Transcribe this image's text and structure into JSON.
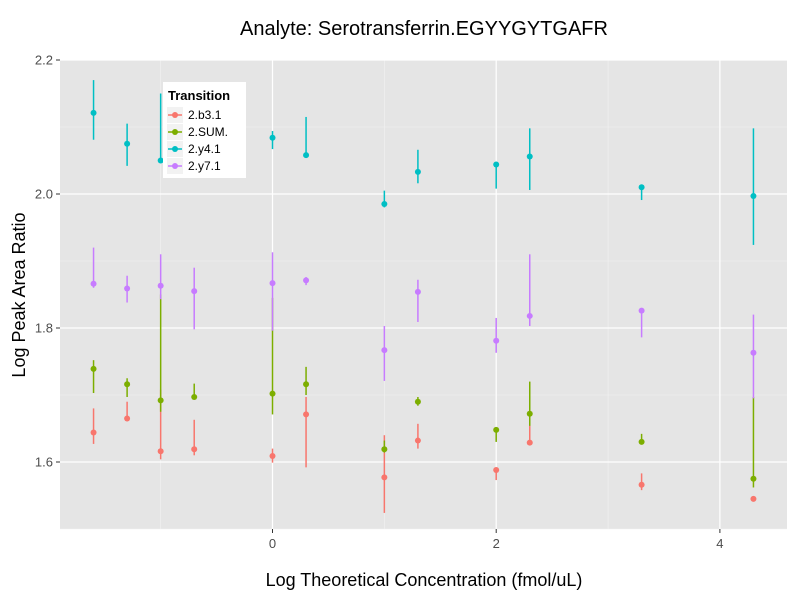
{
  "chart_data": {
    "type": "scatter",
    "title": "Analyte: Serotransferrin.EGYYGYTGAFR",
    "xlabel": "Log Theoretical Concentration (fmol/uL)",
    "ylabel": "Log Peak Area Ratio",
    "xlim": [
      -1.9,
      4.6
    ],
    "ylim": [
      1.5,
      2.2
    ],
    "x_ticks": [
      0,
      2,
      4
    ],
    "x_tick_labels": [
      "0",
      "2",
      "4"
    ],
    "y_ticks": [
      1.6,
      1.8,
      2.0,
      2.2
    ],
    "y_tick_labels": [
      "1.6",
      "1.8",
      "2.0",
      "2.2"
    ],
    "grid": true,
    "legend": {
      "title": "Transition",
      "placement": "top-left"
    },
    "series": [
      {
        "name": "2.b3.1",
        "color": "#F8766D",
        "points": [
          {
            "x": -1.6,
            "y": 1.644,
            "lo": 1.627,
            "hi": 1.68
          },
          {
            "x": -1.3,
            "y": 1.665,
            "lo": 1.661,
            "hi": 1.69
          },
          {
            "x": -1.0,
            "y": 1.616,
            "lo": 1.604,
            "hi": 1.708
          },
          {
            "x": -0.7,
            "y": 1.619,
            "lo": 1.61,
            "hi": 1.663
          },
          {
            "x": 0.0,
            "y": 1.609,
            "lo": 1.599,
            "hi": 1.62
          },
          {
            "x": 0.3,
            "y": 1.671,
            "lo": 1.592,
            "hi": 1.697
          },
          {
            "x": 1.0,
            "y": 1.577,
            "lo": 1.524,
            "hi": 1.64
          },
          {
            "x": 1.3,
            "y": 1.632,
            "lo": 1.62,
            "hi": 1.657
          },
          {
            "x": 2.0,
            "y": 1.588,
            "lo": 1.573,
            "hi": 1.59
          },
          {
            "x": 2.3,
            "y": 1.629,
            "lo": 1.625,
            "hi": 1.655
          },
          {
            "x": 3.3,
            "y": 1.566,
            "lo": 1.558,
            "hi": 1.583
          },
          {
            "x": 4.3,
            "y": 1.545,
            "lo": 1.545,
            "hi": 1.545
          }
        ]
      },
      {
        "name": "2.SUM.",
        "color": "#7CAE00",
        "points": [
          {
            "x": -1.6,
            "y": 1.739,
            "lo": 1.703,
            "hi": 1.752
          },
          {
            "x": -1.3,
            "y": 1.716,
            "lo": 1.697,
            "hi": 1.725
          },
          {
            "x": -1.0,
            "y": 1.692,
            "lo": 1.675,
            "hi": 1.85
          },
          {
            "x": -0.7,
            "y": 1.697,
            "lo": 1.697,
            "hi": 1.717
          },
          {
            "x": 0.0,
            "y": 1.702,
            "lo": 1.671,
            "hi": 1.845
          },
          {
            "x": 0.3,
            "y": 1.716,
            "lo": 1.7,
            "hi": 1.742
          },
          {
            "x": 1.0,
            "y": 1.619,
            "lo": 1.614,
            "hi": 1.632
          },
          {
            "x": 1.3,
            "y": 1.69,
            "lo": 1.684,
            "hi": 1.697
          },
          {
            "x": 2.0,
            "y": 1.648,
            "lo": 1.63,
            "hi": 1.648
          },
          {
            "x": 2.3,
            "y": 1.672,
            "lo": 1.654,
            "hi": 1.72
          },
          {
            "x": 3.3,
            "y": 1.63,
            "lo": 1.63,
            "hi": 1.642
          },
          {
            "x": 4.3,
            "y": 1.575,
            "lo": 1.562,
            "hi": 1.697
          }
        ]
      },
      {
        "name": "2.y4.1",
        "color": "#00BFC4",
        "points": [
          {
            "x": -1.6,
            "y": 2.121,
            "lo": 2.081,
            "hi": 2.17
          },
          {
            "x": -1.3,
            "y": 2.075,
            "lo": 2.042,
            "hi": 2.105
          },
          {
            "x": -1.0,
            "y": 2.05,
            "lo": 2.05,
            "hi": 2.15
          },
          {
            "x": 0.0,
            "y": 2.084,
            "lo": 2.067,
            "hi": 2.094
          },
          {
            "x": 0.3,
            "y": 2.058,
            "lo": 2.054,
            "hi": 2.115
          },
          {
            "x": 1.0,
            "y": 1.985,
            "lo": 1.98,
            "hi": 2.005
          },
          {
            "x": 1.3,
            "y": 2.033,
            "lo": 2.016,
            "hi": 2.066
          },
          {
            "x": 2.0,
            "y": 2.044,
            "lo": 2.008,
            "hi": 2.044
          },
          {
            "x": 2.3,
            "y": 2.056,
            "lo": 2.006,
            "hi": 2.098
          },
          {
            "x": 3.3,
            "y": 2.01,
            "lo": 1.991,
            "hi": 2.01
          },
          {
            "x": 4.3,
            "y": 1.997,
            "lo": 1.924,
            "hi": 2.098
          }
        ]
      },
      {
        "name": "2.y7.1",
        "color": "#C77CFF",
        "points": [
          {
            "x": -1.6,
            "y": 1.866,
            "lo": 1.86,
            "hi": 1.92
          },
          {
            "x": -1.3,
            "y": 1.859,
            "lo": 1.838,
            "hi": 1.878
          },
          {
            "x": -1.0,
            "y": 1.863,
            "lo": 1.843,
            "hi": 1.91
          },
          {
            "x": -0.7,
            "y": 1.855,
            "lo": 1.798,
            "hi": 1.89
          },
          {
            "x": 0.0,
            "y": 1.867,
            "lo": 1.796,
            "hi": 1.913
          },
          {
            "x": 0.3,
            "y": 1.871,
            "lo": 1.864,
            "hi": 1.876
          },
          {
            "x": 1.0,
            "y": 1.767,
            "lo": 1.721,
            "hi": 1.803
          },
          {
            "x": 1.3,
            "y": 1.854,
            "lo": 1.809,
            "hi": 1.872
          },
          {
            "x": 2.0,
            "y": 1.781,
            "lo": 1.763,
            "hi": 1.815
          },
          {
            "x": 2.3,
            "y": 1.818,
            "lo": 1.803,
            "hi": 1.91
          },
          {
            "x": 3.3,
            "y": 1.826,
            "lo": 1.786,
            "hi": 1.826
          },
          {
            "x": 4.3,
            "y": 1.763,
            "lo": 1.695,
            "hi": 1.82
          }
        ]
      }
    ]
  }
}
